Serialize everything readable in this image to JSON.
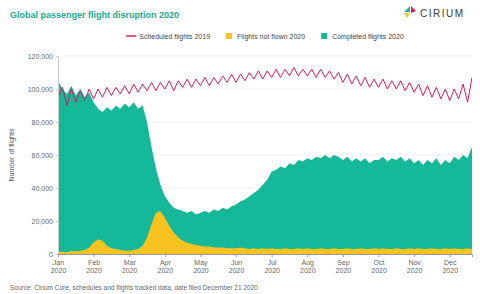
{
  "chart_data": {
    "type": "area",
    "title": "Global passenger flight disruption 2020",
    "logo": "CIRIUM",
    "y_label": "Number of flights",
    "source": "Source: Cirium Core, schedules and flights tracked data, date filed December 21 2020",
    "legend": "top",
    "grid": true,
    "ylim": [
      0,
      120000
    ],
    "yticks": [
      0,
      {
        "value": 20000,
        "label": "20,000"
      },
      {
        "value": 40000,
        "label": "40,000"
      },
      {
        "value": 60000,
        "label": "60,000"
      },
      {
        "value": 80000,
        "label": "80,000"
      },
      {
        "value": 100000,
        "label": "100,000"
      },
      {
        "value": 120000,
        "label": "120,000"
      }
    ],
    "categories": [
      "Jan 2020",
      null,
      null,
      null,
      null,
      null,
      null,
      null,
      "Feb 2020",
      null,
      null,
      null,
      null,
      null,
      null,
      null,
      "Mar 2020",
      null,
      null,
      null,
      null,
      null,
      null,
      null,
      "Apr 2020",
      null,
      null,
      null,
      null,
      null,
      null,
      null,
      "May 2020",
      null,
      null,
      null,
      null,
      null,
      null,
      null,
      "Jun 2020",
      null,
      null,
      null,
      null,
      null,
      null,
      null,
      "Jul 2020",
      null,
      null,
      null,
      null,
      null,
      null,
      null,
      "Aug 2020",
      null,
      null,
      null,
      null,
      null,
      null,
      null,
      "Sep 2020",
      null,
      null,
      null,
      null,
      null,
      null,
      null,
      "Oct 2020",
      null,
      null,
      null,
      null,
      null,
      null,
      null,
      "Nov 2020",
      null,
      null,
      null,
      null,
      null,
      null,
      null,
      "Dec 2020",
      null,
      null,
      null,
      null,
      null
    ],
    "series": [
      {
        "name": "Scheduled flights 2019",
        "type": "line",
        "color": "#d81b60",
        "values": [
          95000,
          101000,
          90000,
          100000,
          92000,
          99000,
          93000,
          100000,
          94000,
          100000,
          95000,
          101000,
          96000,
          101000,
          97000,
          102000,
          97000,
          103000,
          98000,
          103000,
          99000,
          104000,
          99000,
          104000,
          100000,
          105000,
          99000,
          105000,
          101000,
          106000,
          101000,
          106000,
          102000,
          107000,
          102000,
          107000,
          103000,
          108000,
          104000,
          109000,
          104000,
          109000,
          105000,
          110000,
          106000,
          111000,
          106000,
          111000,
          107000,
          112000,
          107000,
          112000,
          108000,
          113000,
          108000,
          112000,
          108000,
          112000,
          107000,
          112000,
          107000,
          111000,
          106000,
          110000,
          104000,
          109000,
          103000,
          108000,
          102000,
          107000,
          101000,
          106000,
          101000,
          106000,
          100000,
          105000,
          100000,
          105000,
          99000,
          104000,
          98000,
          103000,
          96000,
          102000,
          95000,
          101000,
          94000,
          100000,
          93000,
          100000,
          94000,
          103000,
          92000,
          107000
        ]
      },
      {
        "name": "Flights not flown 2020",
        "type": "area",
        "color": "#f9c31f",
        "values": [
          1000,
          1500,
          1000,
          2000,
          1500,
          2000,
          2500,
          4000,
          7000,
          9000,
          8000,
          5000,
          3500,
          3000,
          2500,
          2000,
          2000,
          2500,
          3000,
          5000,
          10000,
          18000,
          25000,
          26000,
          22000,
          17000,
          13000,
          10000,
          8000,
          7000,
          6000,
          5500,
          5000,
          4500,
          4500,
          4000,
          4000,
          4000,
          3500,
          3500,
          3500,
          4000,
          3500,
          3000,
          3500,
          3000,
          3500,
          3000,
          3500,
          3000,
          3000,
          3500,
          3000,
          3000,
          3500,
          3000,
          3500,
          3000,
          3000,
          3500,
          3000,
          3000,
          3500,
          3000,
          3000,
          3500,
          3000,
          3000,
          3500,
          3000,
          3000,
          3500,
          3000,
          3500,
          3000,
          3000,
          3500,
          3000,
          3000,
          3500,
          3000,
          3500,
          3000,
          3000,
          3500,
          3000,
          3000,
          3500,
          3000,
          3500,
          3000,
          3000,
          3500,
          3000
        ]
      },
      {
        "name": "Completed flights 2020",
        "type": "area",
        "color": "#16b89a",
        "values": [
          105000,
          100000,
          97000,
          102000,
          96000,
          100000,
          95000,
          98000,
          92000,
          88000,
          86000,
          89000,
          87000,
          90000,
          88000,
          91000,
          89000,
          92000,
          88000,
          90000,
          80000,
          65000,
          52000,
          42000,
          35000,
          31000,
          28000,
          27000,
          26000,
          25000,
          26000,
          24000,
          25000,
          26000,
          25000,
          27000,
          26000,
          28000,
          27000,
          29000,
          30000,
          32000,
          33000,
          35000,
          37000,
          39000,
          42000,
          45000,
          50000,
          51000,
          53000,
          52000,
          55000,
          54000,
          57000,
          56000,
          58000,
          57000,
          59000,
          58000,
          60000,
          58000,
          60000,
          59000,
          57000,
          59000,
          56000,
          58000,
          56000,
          58000,
          55000,
          57000,
          57000,
          59000,
          56000,
          58000,
          57000,
          59000,
          56000,
          58000,
          55000,
          57000,
          54000,
          57000,
          55000,
          58000,
          54000,
          57000,
          55000,
          59000,
          57000,
          60000,
          58000,
          65000
        ]
      }
    ]
  }
}
